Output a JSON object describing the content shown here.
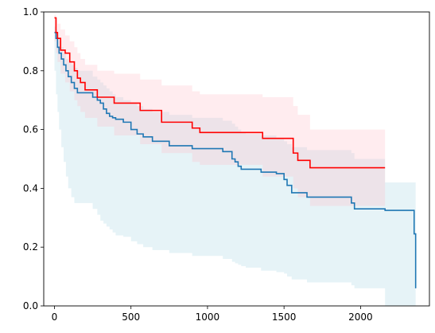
{
  "chart_data": {
    "type": "line",
    "subtype": "kaplan-meier survival curves with confidence bands",
    "title": "",
    "xlabel": "",
    "ylabel": "",
    "xlim": [
      -70,
      2450
    ],
    "ylim": [
      0.0,
      1.0
    ],
    "x_ticks": [
      0,
      500,
      1000,
      1500,
      2000
    ],
    "y_ticks": [
      0.0,
      0.2,
      0.4,
      0.6,
      0.8,
      1.0
    ],
    "x_tick_labels": [
      "0",
      "500",
      "1000",
      "1500",
      "2000"
    ],
    "y_tick_labels": [
      "0.0",
      "0.2",
      "0.4",
      "0.6",
      "0.8",
      "1.0"
    ],
    "grid": false,
    "legend": "none",
    "series": [
      {
        "color": "#1f77b4",
        "band_color": "#add8e6",
        "x": [
          0,
          10,
          20,
          30,
          45,
          60,
          75,
          90,
          110,
          130,
          150,
          250,
          280,
          300,
          320,
          340,
          360,
          380,
          400,
          450,
          500,
          540,
          580,
          640,
          750,
          900,
          1100,
          1160,
          1180,
          1200,
          1220,
          1250,
          1350,
          1450,
          1500,
          1520,
          1550,
          1650,
          1940,
          1960,
          2160,
          2350,
          2360
        ],
        "y": [
          0.93,
          0.91,
          0.88,
          0.86,
          0.84,
          0.82,
          0.8,
          0.78,
          0.76,
          0.74,
          0.725,
          0.71,
          0.7,
          0.69,
          0.67,
          0.655,
          0.645,
          0.64,
          0.635,
          0.625,
          0.6,
          0.585,
          0.575,
          0.56,
          0.545,
          0.535,
          0.525,
          0.5,
          0.49,
          0.475,
          0.465,
          0.465,
          0.455,
          0.45,
          0.43,
          0.41,
          0.385,
          0.37,
          0.35,
          0.33,
          0.325,
          0.245,
          0.06
        ],
        "ci_lower": [
          0.8,
          0.72,
          0.66,
          0.6,
          0.54,
          0.49,
          0.44,
          0.4,
          0.37,
          0.35,
          0.35,
          0.33,
          0.31,
          0.29,
          0.28,
          0.27,
          0.26,
          0.25,
          0.24,
          0.235,
          0.22,
          0.21,
          0.2,
          0.19,
          0.18,
          0.17,
          0.16,
          0.15,
          0.145,
          0.14,
          0.135,
          0.13,
          0.12,
          0.115,
          0.11,
          0.1,
          0.09,
          0.08,
          0.07,
          0.06,
          0.0,
          0.0,
          0.0
        ],
        "ci_upper": [
          0.95,
          0.94,
          0.92,
          0.9,
          0.88,
          0.86,
          0.84,
          0.83,
          0.82,
          0.81,
          0.8,
          0.78,
          0.77,
          0.76,
          0.75,
          0.74,
          0.73,
          0.72,
          0.71,
          0.7,
          0.69,
          0.68,
          0.67,
          0.66,
          0.65,
          0.64,
          0.63,
          0.62,
          0.61,
          0.6,
          0.59,
          0.585,
          0.58,
          0.57,
          0.56,
          0.55,
          0.54,
          0.53,
          0.52,
          0.5,
          0.42,
          0.42,
          0.42
        ]
      },
      {
        "color": "#ff0000",
        "band_color": "#ffc0cb",
        "x": [
          0,
          10,
          20,
          40,
          70,
          100,
          130,
          150,
          170,
          200,
          280,
          390,
          560,
          700,
          900,
          950,
          1360,
          1560,
          1590,
          1670,
          2160
        ],
        "y": [
          0.98,
          0.93,
          0.91,
          0.87,
          0.86,
          0.83,
          0.8,
          0.775,
          0.76,
          0.735,
          0.71,
          0.69,
          0.665,
          0.625,
          0.605,
          0.59,
          0.57,
          0.52,
          0.495,
          0.47,
          0.47
        ],
        "ci_lower": [
          0.9,
          0.86,
          0.83,
          0.79,
          0.76,
          0.73,
          0.7,
          0.68,
          0.66,
          0.64,
          0.61,
          0.58,
          0.55,
          0.52,
          0.49,
          0.48,
          0.44,
          0.4,
          0.37,
          0.34,
          0.34
        ],
        "ci_upper": [
          0.99,
          0.98,
          0.96,
          0.94,
          0.92,
          0.9,
          0.88,
          0.86,
          0.84,
          0.82,
          0.8,
          0.79,
          0.77,
          0.75,
          0.73,
          0.72,
          0.71,
          0.68,
          0.65,
          0.6,
          0.58
        ]
      }
    ]
  }
}
